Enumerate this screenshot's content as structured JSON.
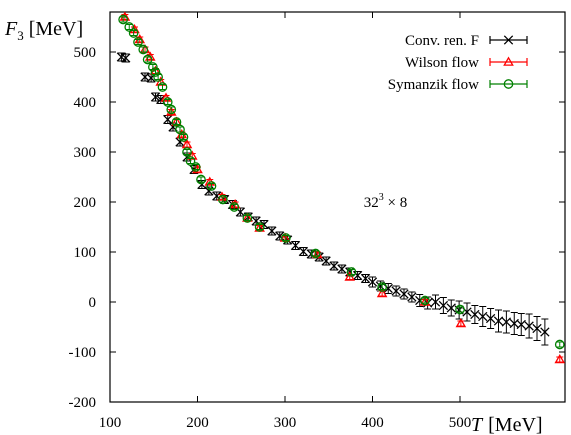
{
  "chart_data": {
    "type": "scatter",
    "xlabel_symbol": "T",
    "xlabel_unit": "[MeV]",
    "ylabel_symbol": "F",
    "ylabel_sub": "3",
    "ylabel_unit": "[MeV]",
    "xlim": [
      100,
      620
    ],
    "ylim": [
      -200,
      580
    ],
    "xticks": [
      100,
      200,
      300,
      400,
      500
    ],
    "yticks": [
      -200,
      -100,
      0,
      100,
      200,
      300,
      400,
      500
    ],
    "legend_position": "top-right",
    "annotation": {
      "base": "32",
      "sup": "3",
      "rest": " × 8",
      "x": 430,
      "y": 200
    },
    "series": [
      {
        "name": "Conv. ren. F",
        "color": "#000000",
        "marker": "x",
        "points": [
          [
            113,
            490,
            8
          ],
          [
            118,
            488,
            8
          ],
          [
            140,
            450,
            8
          ],
          [
            147,
            448,
            8
          ],
          [
            152,
            410,
            8
          ],
          [
            158,
            405,
            8
          ],
          [
            166,
            365,
            8
          ],
          [
            172,
            350,
            8
          ],
          [
            180,
            320,
            8
          ],
          [
            188,
            290,
            8
          ],
          [
            196,
            265,
            8
          ],
          [
            205,
            235,
            8
          ],
          [
            213,
            222,
            8
          ],
          [
            222,
            212,
            8
          ],
          [
            231,
            205,
            8
          ],
          [
            240,
            195,
            8
          ],
          [
            249,
            180,
            8
          ],
          [
            258,
            170,
            8
          ],
          [
            267,
            162,
            8
          ],
          [
            276,
            155,
            8
          ],
          [
            285,
            142,
            8
          ],
          [
            294,
            132,
            8
          ],
          [
            303,
            124,
            8
          ],
          [
            312,
            113,
            8
          ],
          [
            321,
            101,
            8
          ],
          [
            330,
            96,
            8
          ],
          [
            339,
            90,
            8
          ],
          [
            347,
            82,
            8
          ],
          [
            356,
            72,
            8
          ],
          [
            365,
            66,
            8
          ],
          [
            374,
            60,
            8
          ],
          [
            383,
            53,
            8
          ],
          [
            392,
            47,
            8
          ],
          [
            400,
            40,
            10
          ],
          [
            409,
            32,
            10
          ],
          [
            418,
            27,
            10
          ],
          [
            427,
            22,
            10
          ],
          [
            436,
            16,
            10
          ],
          [
            445,
            10,
            10
          ],
          [
            454,
            3,
            12
          ],
          [
            463,
            -2,
            12
          ],
          [
            472,
            0,
            14
          ],
          [
            481,
            -7,
            16
          ],
          [
            490,
            -12,
            16
          ],
          [
            499,
            -16,
            18
          ],
          [
            508,
            -20,
            18
          ],
          [
            517,
            -25,
            18
          ],
          [
            526,
            -29,
            20
          ],
          [
            535,
            -33,
            20
          ],
          [
            544,
            -38,
            22
          ],
          [
            553,
            -40,
            22
          ],
          [
            562,
            -43,
            22
          ],
          [
            570,
            -45,
            22
          ],
          [
            579,
            -48,
            24
          ],
          [
            588,
            -53,
            24
          ],
          [
            597,
            -60,
            26
          ]
        ]
      },
      {
        "name": "Wilson flow",
        "color": "#ff0000",
        "marker": "triangle",
        "points": [
          [
            117,
            570,
            5
          ],
          [
            128,
            545,
            5
          ],
          [
            134,
            525,
            5
          ],
          [
            140,
            505,
            5
          ],
          [
            146,
            490,
            5
          ],
          [
            152,
            462,
            5
          ],
          [
            158,
            440,
            5
          ],
          [
            164,
            408,
            5
          ],
          [
            170,
            380,
            5
          ],
          [
            176,
            360,
            5
          ],
          [
            182,
            335,
            5
          ],
          [
            188,
            315,
            5
          ],
          [
            194,
            292,
            5
          ],
          [
            200,
            265,
            5
          ],
          [
            214,
            240,
            5
          ],
          [
            228,
            210,
            5
          ],
          [
            243,
            195,
            5
          ],
          [
            257,
            168,
            5
          ],
          [
            271,
            148,
            5
          ],
          [
            300,
            128,
            5
          ],
          [
            337,
            95,
            5
          ],
          [
            374,
            50,
            5
          ],
          [
            411,
            17,
            5
          ],
          [
            460,
            0,
            5
          ],
          [
            501,
            -43,
            5
          ],
          [
            614,
            -115,
            5
          ]
        ]
      },
      {
        "name": "Symanzik flow",
        "color": "#008000",
        "marker": "circle",
        "points": [
          [
            115,
            565,
            5
          ],
          [
            122,
            550,
            5
          ],
          [
            127,
            538,
            5
          ],
          [
            132,
            520,
            5
          ],
          [
            138,
            505,
            5
          ],
          [
            143,
            485,
            5
          ],
          [
            149,
            470,
            5
          ],
          [
            152,
            460,
            5
          ],
          [
            155,
            450,
            5
          ],
          [
            160,
            430,
            5
          ],
          [
            166,
            400,
            5
          ],
          [
            170,
            385,
            5
          ],
          [
            176,
            360,
            5
          ],
          [
            180,
            345,
            5
          ],
          [
            184,
            330,
            5
          ],
          [
            188,
            300,
            5
          ],
          [
            192,
            282,
            5
          ],
          [
            198,
            270,
            5
          ],
          [
            204,
            245,
            5
          ],
          [
            216,
            232,
            5
          ],
          [
            229,
            205,
            5
          ],
          [
            242,
            190,
            5
          ],
          [
            257,
            168,
            5
          ],
          [
            271,
            150,
            5
          ],
          [
            301,
            128,
            5
          ],
          [
            335,
            97,
            5
          ],
          [
            376,
            60,
            5
          ],
          [
            411,
            30,
            5
          ],
          [
            460,
            3,
            5
          ],
          [
            500,
            -15,
            5
          ],
          [
            614,
            -85,
            5
          ]
        ]
      }
    ]
  }
}
